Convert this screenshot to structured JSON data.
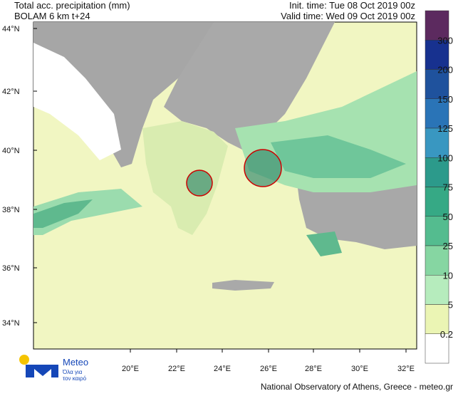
{
  "header": {
    "title": "Total acc. precipitation (mm)",
    "model": "BOLAM 6 km t+24",
    "init_time": "Init. time: Tue 08 Oct 2019 00z",
    "valid_time": "Valid time: Wed 09 Oct 2019 00z"
  },
  "lat_labels": [
    "44°N",
    "42°N",
    "40°N",
    "38°N",
    "36°N",
    "34°N"
  ],
  "lon_labels": [
    "20°E",
    "22°E",
    "24°E",
    "26°E",
    "28°E",
    "30°E",
    "32°E"
  ],
  "colorbar_labels": [
    "300",
    "200",
    "150",
    "125",
    "100",
    "75",
    "50",
    "25",
    "10",
    "5",
    "0.2"
  ],
  "logo": {
    "name": "Meteo",
    "tagline_1": "Όλα για",
    "tagline_2": "τον καιρό"
  },
  "footer": "National Observatory of Athens, Greece - meteo.gr"
}
